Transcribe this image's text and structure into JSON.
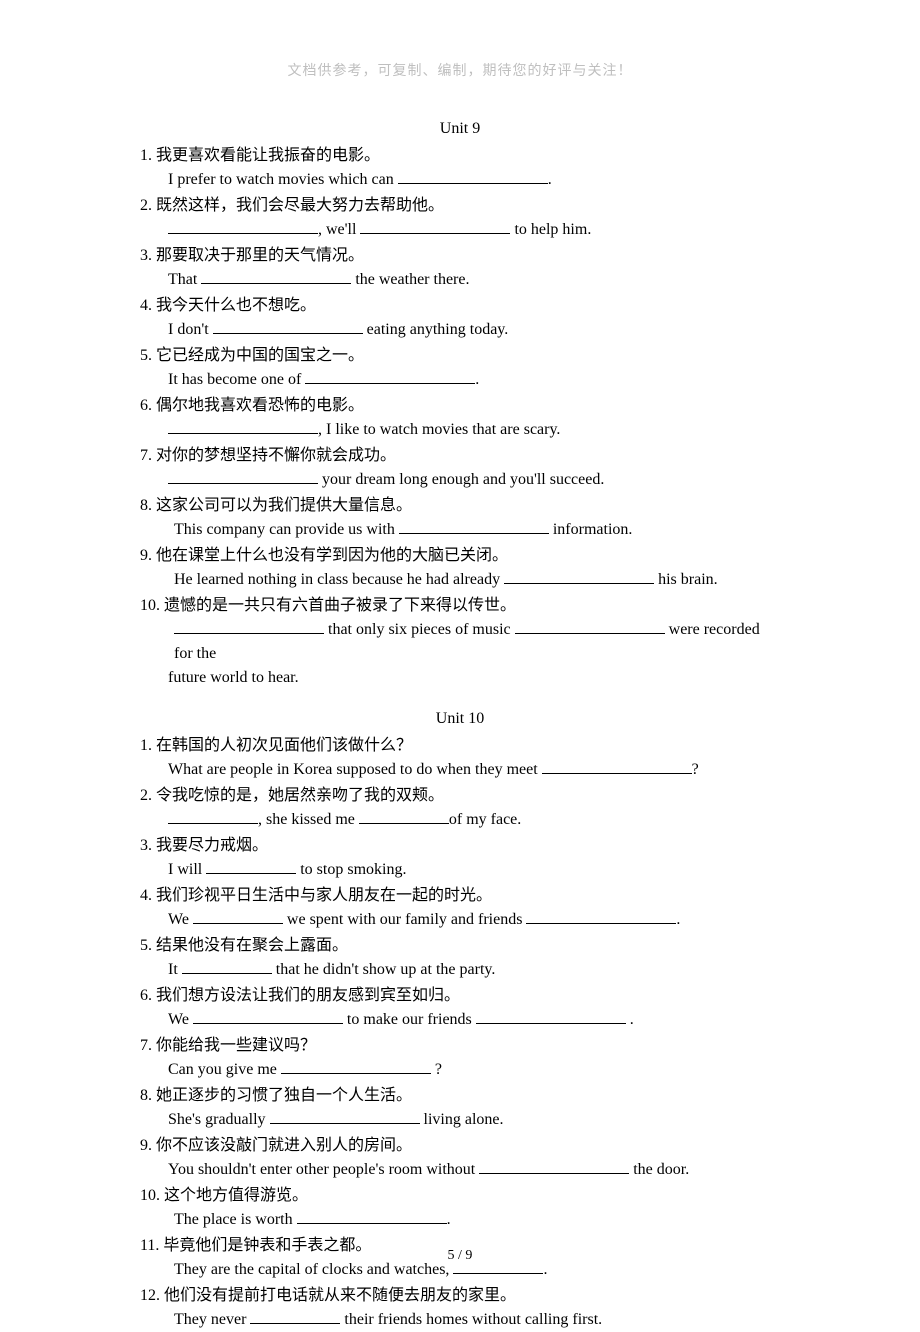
{
  "header_note": "文档供参考，可复制、编制，期待您的好评与关注！",
  "unit9": {
    "title": "Unit 9",
    "items": [
      {
        "n": "1.",
        "cn": "我更喜欢看能让我振奋的电影。",
        "en_pre": "I prefer to watch movies which can ",
        "en_post": "."
      },
      {
        "n": "2.",
        "cn": "既然这样，我们会尽最大努力去帮助他。",
        "en_pre": "",
        "en_mid": ", we'll ",
        "en_post": " to help him."
      },
      {
        "n": "3.",
        "cn": "那要取决于那里的天气情况。",
        "en_pre": "That ",
        "en_post": " the weather there."
      },
      {
        "n": "4.",
        "cn": "我今天什么也不想吃。",
        "en_pre": "I don't ",
        "en_post": " eating anything today."
      },
      {
        "n": "5.",
        "cn": "它已经成为中国的国宝之一。",
        "en_pre": "It has become one of ",
        "en_post": "."
      },
      {
        "n": "6.",
        "cn": "偶尔地我喜欢看恐怖的电影。",
        "en_pre": "",
        "en_post": ", I like to watch movies that are scary."
      },
      {
        "n": "7.",
        "cn": "对你的梦想坚持不懈你就会成功。",
        "en_pre": "",
        "en_post": " your dream long enough and you'll succeed."
      },
      {
        "n": "8.",
        "cn": " 这家公司可以为我们提供大量信息。",
        "en_pre": "This company can provide us with ",
        "en_post": " information."
      },
      {
        "n": "9.",
        "cn": " 他在课堂上什么也没有学到因为他的大脑已关闭。",
        "en_pre": "He learned nothing in class because he had already ",
        "en_post": " his brain."
      },
      {
        "n": "10.",
        "cn": " 遗憾的是一共只有六首曲子被录了下来得以传世。",
        "en_pre": "",
        "en_mid": " that only six pieces of music ",
        "en_post": " were recorded for the",
        "cont": "future world to hear."
      }
    ]
  },
  "unit10": {
    "title": "Unit 10",
    "items": [
      {
        "n": "1.",
        "cn": "在韩国的人初次见面他们该做什么？",
        "en_pre": "What are people in Korea supposed to do when they meet ",
        "en_post": "?"
      },
      {
        "n": "2.",
        "cn": "令我吃惊的是，她居然亲吻了我的双颊。",
        "en_pre": "",
        "en_mid": ", she kissed me ",
        "en_post": "of my face."
      },
      {
        "n": "3.",
        "cn": "我要尽力戒烟。",
        "en_pre": "I will ",
        "en_post": " to stop smoking."
      },
      {
        "n": "4.",
        "cn": "我们珍视平日生活中与家人朋友在一起的时光。",
        "en_pre": "We ",
        "en_mid": " we spent with our family and friends ",
        "en_post": "."
      },
      {
        "n": "5.",
        "cn": "结果他没有在聚会上露面。",
        "en_pre": "It ",
        "en_post": " that he didn't show up at the party."
      },
      {
        "n": "6.",
        "cn": "我们想方设法让我们的朋友感到宾至如归。",
        "en_pre": "We ",
        "en_mid": " to make our friends ",
        "en_post": " ."
      },
      {
        "n": "7.",
        "cn": "你能给我一些建议吗？",
        "en_pre": "Can you give me ",
        "en_post": " ?"
      },
      {
        "n": "8.",
        "cn": "她正逐步的习惯了独自一个人生活。",
        "en_pre": "She's gradually ",
        "en_post": " living alone."
      },
      {
        "n": "9.",
        "cn": "你不应该没敲门就进入别人的房间。",
        "en_pre": "You shouldn't enter other people's room without ",
        "en_post": " the door."
      },
      {
        "n": "10.",
        "cn": " 这个地方值得游览。",
        "en_pre": "The place is worth ",
        "en_post": "."
      },
      {
        "n": "11.",
        "cn": " 毕竟他们是钟表和手表之都。",
        "en_pre": "They are the capital of clocks and watches, ",
        "en_post": "."
      },
      {
        "n": "12.",
        "cn": " 他们没有提前打电话就从来不随便去朋友的家里。",
        "en_pre": "They never ",
        "en_post": " their friends homes without calling first."
      }
    ]
  },
  "footer": "5 / 9"
}
